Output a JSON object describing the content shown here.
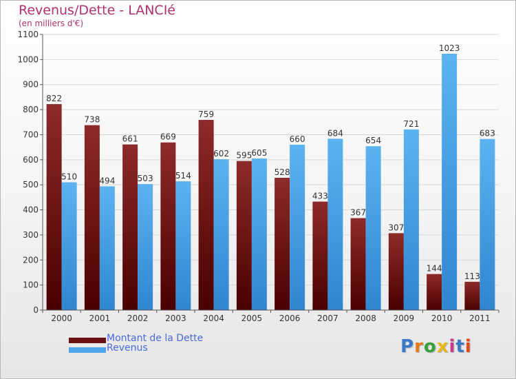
{
  "title": "Revenus/Dette - LANCIé",
  "subtitle": "(en milliers d'€)",
  "chart_data": {
    "type": "bar",
    "title": "Revenus/Dette - LANCIé",
    "subtitle": "(en milliers d'€)",
    "categories": [
      "2000",
      "2001",
      "2002",
      "2003",
      "2004",
      "2005",
      "2006",
      "2007",
      "2008",
      "2009",
      "2010",
      "2011"
    ],
    "series": [
      {
        "name": "Montant de la Dette",
        "color": "#7a1a1a",
        "values": [
          822,
          738,
          661,
          669,
          759,
          595,
          528,
          433,
          367,
          307,
          144,
          113
        ]
      },
      {
        "name": "Revenus",
        "color": "#4ea6e8",
        "values": [
          510,
          494,
          503,
          514,
          602,
          605,
          660,
          684,
          654,
          721,
          1023,
          683
        ]
      }
    ],
    "ylim": [
      0,
      1100
    ],
    "yticks": [
      0,
      100,
      200,
      300,
      400,
      500,
      600,
      700,
      800,
      900,
      1000,
      1100
    ],
    "grid": true,
    "legend_position": "bottom-left",
    "data_labels": true
  },
  "legend": [
    {
      "label": "Montant de la Dette",
      "color": "#6a0f0f"
    },
    {
      "label": "Revenus",
      "color": "#4ea6e8"
    }
  ],
  "logo": {
    "text": "Proxiti",
    "letter_colors": [
      "#3a78c8",
      "#e87a1a",
      "#3aa040",
      "#e8b81a",
      "#c83a8a",
      "#3a78c8",
      "#e84a1a"
    ]
  }
}
